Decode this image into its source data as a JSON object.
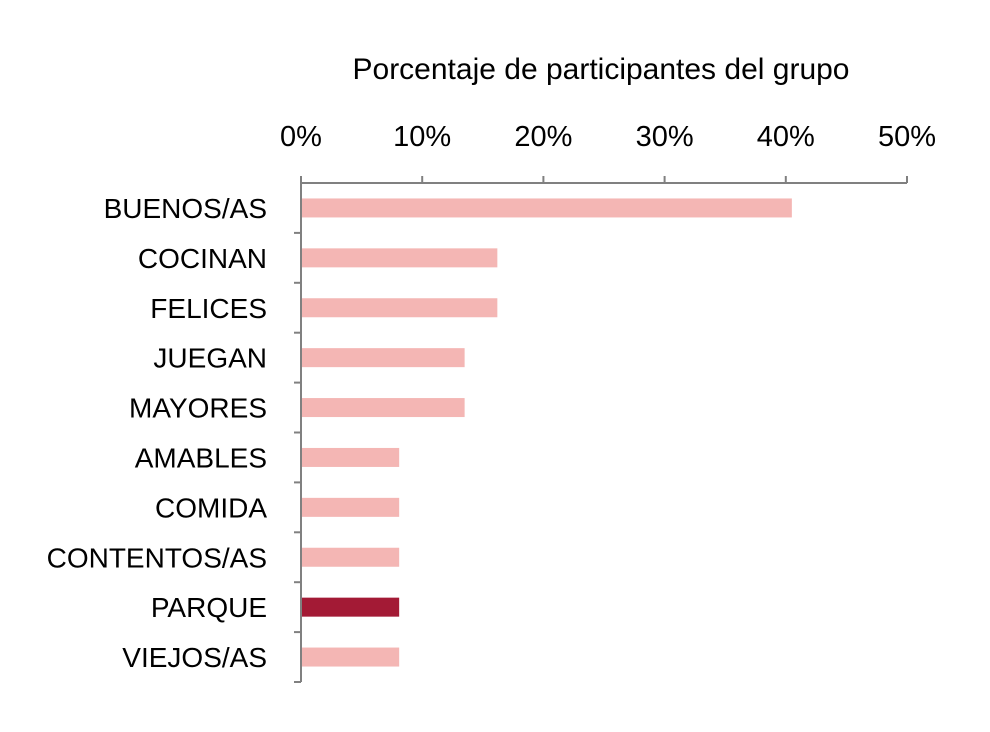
{
  "chart_data": {
    "type": "bar",
    "orientation": "horizontal",
    "xlabel": "Porcentaje de participantes del grupo",
    "xlabel_position": "top",
    "xlim": [
      0,
      0.5
    ],
    "xticks": [
      "0%",
      "10%",
      "20%",
      "30%",
      "40%",
      "50%"
    ],
    "grid": false,
    "categories": [
      "BUENOS/AS",
      "COCINAN",
      "FELICES",
      "JUEGAN",
      "MAYORES",
      "AMABLES",
      "COMIDA",
      "CONTENTOS/AS",
      "PARQUE",
      "VIEJOS/AS"
    ],
    "values": [
      0.405,
      0.162,
      0.162,
      0.135,
      0.135,
      0.081,
      0.081,
      0.081,
      0.081,
      0.081
    ],
    "colors": {
      "default": "#F4B6B4",
      "highlight": "#A31A35",
      "axis": "#808080"
    },
    "highlight_category": "PARQUE"
  }
}
